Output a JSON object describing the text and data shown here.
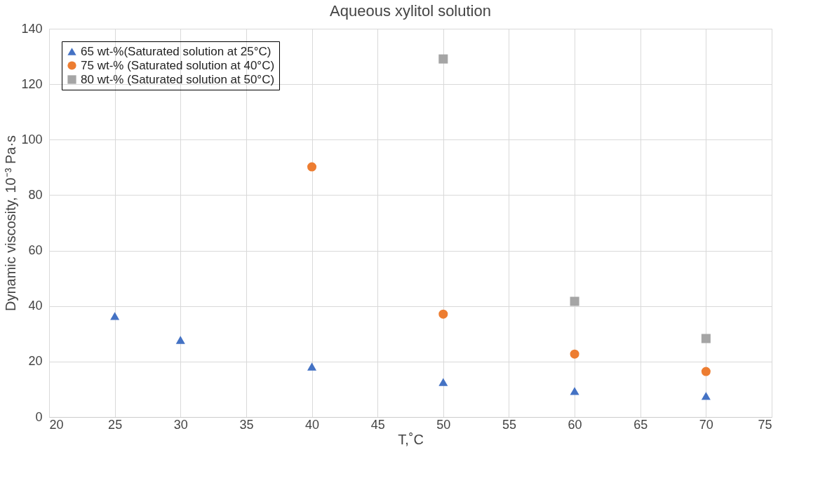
{
  "chart_data": {
    "type": "scatter",
    "title": "Aqueous xylitol solution",
    "xlabel": "T,˚C",
    "ylabel": "Dynamic viscosity, 10⁻³ Pa·s",
    "xlim": [
      20,
      75
    ],
    "xticks": [
      20,
      25,
      30,
      35,
      40,
      45,
      50,
      55,
      60,
      65,
      70,
      75
    ],
    "ylim": [
      0,
      140
    ],
    "yticks": [
      0,
      20,
      40,
      60,
      80,
      100,
      120,
      140
    ],
    "grid": true,
    "legend": "top left",
    "series": [
      {
        "name": "65 wt-%(Saturated solution at 25°C)",
        "color": "#4472c4",
        "marker": "triangle",
        "x": [
          25,
          30,
          40,
          50,
          60,
          70
        ],
        "values": [
          36.4,
          27.8,
          18.2,
          12.6,
          9.4,
          7.6
        ]
      },
      {
        "name": "75 wt-% (Saturated solution at 40°C)",
        "color": "#ed7d31",
        "marker": "circle",
        "x": [
          40,
          50,
          60,
          70
        ],
        "values": [
          90.2,
          37.1,
          22.7,
          16.4
        ]
      },
      {
        "name": "80 wt-% (Saturated solution at 50°C)",
        "color": "#a5a5a5",
        "marker": "square",
        "x": [
          50,
          60,
          70
        ],
        "values": [
          129.1,
          41.7,
          28.3
        ]
      }
    ]
  }
}
